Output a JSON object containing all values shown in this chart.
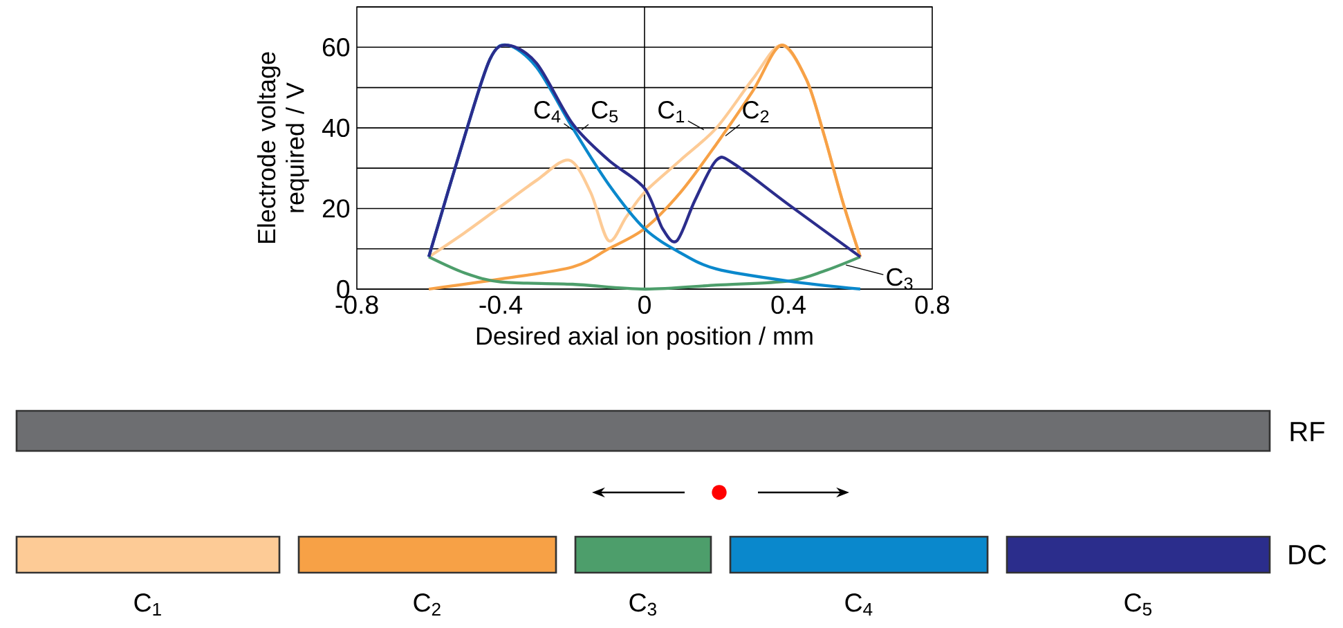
{
  "chart_data": {
    "type": "line",
    "xlabel": "Desired axial ion position / mm",
    "ylabel": "Electrode voltage required / V",
    "xlim": [
      -0.8,
      0.8
    ],
    "ylim": [
      0,
      70
    ],
    "xticks": [
      -0.8,
      -0.4,
      0,
      0.4,
      0.8
    ],
    "yticks": [
      0,
      {
        "value": 10,
        "label": null
      },
      20,
      {
        "value": 30,
        "label": null
      },
      40,
      {
        "value": 50,
        "label": null
      },
      60,
      {
        "value": 70,
        "label": null
      }
    ],
    "grid": "y",
    "ref_lines": [
      {
        "axis": "x",
        "value": 0,
        "color": "#000000"
      }
    ],
    "series": [
      {
        "name": "C$_{1}$",
        "color": "#fdcb96",
        "x": [
          -0.6,
          -0.5,
          -0.4,
          -0.3,
          -0.21,
          -0.15,
          -0.1,
          -0.05,
          0,
          0.1,
          0.2,
          0.3,
          0.38,
          0.45,
          0.5,
          0.55,
          0.6
        ],
        "values": [
          8,
          14,
          20.5,
          27,
          32,
          24,
          12,
          18,
          24,
          32,
          40,
          52,
          60.5,
          52,
          38,
          22,
          8
        ]
      },
      {
        "name": "C$_{2}$",
        "color": "#f7a146",
        "x": [
          -0.6,
          -0.4,
          -0.2,
          -0.1,
          0,
          0.1,
          0.2,
          0.3,
          0.38,
          0.45,
          0.5,
          0.55,
          0.6
        ],
        "values": [
          0,
          2.5,
          5.5,
          10,
          15,
          24,
          36,
          49,
          60.5,
          52,
          38,
          22,
          8
        ]
      },
      {
        "name": "C$_{3}$",
        "color": "#4d9e6b",
        "x": [
          -0.6,
          -0.5,
          -0.4,
          -0.2,
          0,
          0.2,
          0.4,
          0.5,
          0.6
        ],
        "values": [
          8,
          4,
          1.8,
          1.2,
          0,
          1,
          2,
          4.5,
          8
        ]
      },
      {
        "name": "C$_{4}$",
        "color": "#0a88cc",
        "x": [
          -0.6,
          -0.5,
          -0.43,
          -0.38,
          -0.3,
          -0.2,
          -0.1,
          0,
          0.1,
          0.2,
          0.4,
          0.6
        ],
        "values": [
          8,
          38,
          57,
          60.5,
          55,
          40,
          26,
          15,
          9,
          5,
          2,
          0
        ]
      },
      {
        "name": "C$_{5}$",
        "color": "#2b2d8c",
        "x": [
          -0.6,
          -0.5,
          -0.43,
          -0.38,
          -0.3,
          -0.2,
          -0.1,
          0,
          0.05,
          0.09,
          0.14,
          0.2,
          0.25,
          0.4,
          0.6
        ],
        "values": [
          8,
          38,
          57,
          60.5,
          56,
          41,
          32,
          25,
          15,
          12,
          22,
          32,
          31,
          21,
          8
        ]
      }
    ],
    "annotations": [
      "RF",
      "DC"
    ]
  }
}
